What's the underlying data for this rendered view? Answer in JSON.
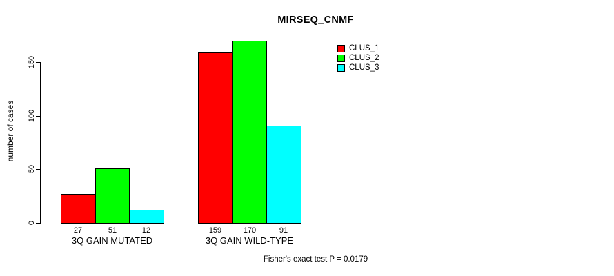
{
  "chart_data": {
    "type": "bar",
    "title": "MIRSEQ_CNMF",
    "xlabel": "",
    "ylabel": "number of cases",
    "categories": [
      "3Q GAIN MUTATED",
      "3Q GAIN WILD-TYPE"
    ],
    "series": [
      {
        "name": "CLUS_1",
        "color": "#ff0000",
        "values": [
          27,
          159
        ]
      },
      {
        "name": "CLUS_2",
        "color": "#00ff00",
        "values": [
          51,
          170
        ]
      },
      {
        "name": "CLUS_3",
        "color": "#00ffff",
        "values": [
          12,
          91
        ]
      }
    ],
    "bar_value_labels": [
      [
        27,
        51,
        12
      ],
      [
        159,
        170,
        91
      ]
    ],
    "yticks": [
      0,
      50,
      100,
      150
    ],
    "ylim": [
      0,
      172
    ],
    "grid": false,
    "legend_position": "top-right",
    "bar_border_color": "#000000",
    "annotation": "Fisher's exact test P = 0.0179"
  }
}
